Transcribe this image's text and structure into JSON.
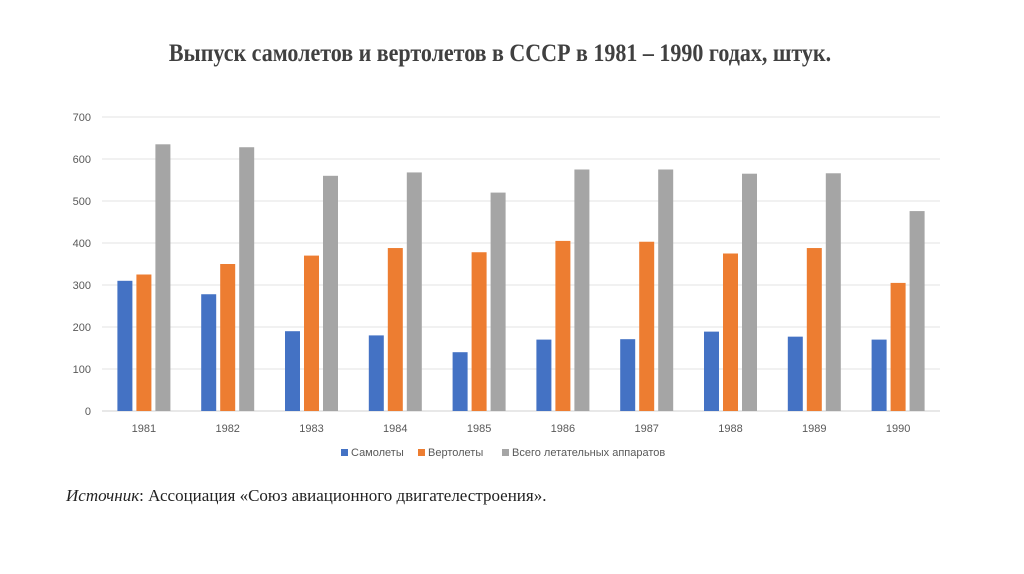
{
  "chart_data": {
    "type": "bar",
    "title": "Выпуск самолетов и вертолетов в СССР в 1981 – 1990 годах, штук.",
    "categories": [
      "1981",
      "1982",
      "1983",
      "1984",
      "1985",
      "1986",
      "1987",
      "1988",
      "1989",
      "1990"
    ],
    "series": [
      {
        "name": "Самолеты",
        "color": "#4472C4",
        "values": [
          310,
          278,
          190,
          180,
          140,
          170,
          171,
          189,
          177,
          170
        ]
      },
      {
        "name": "Вертолеты",
        "color": "#ED7D31",
        "values": [
          325,
          350,
          370,
          388,
          378,
          405,
          403,
          375,
          388,
          305
        ]
      },
      {
        "name": "Всего летательных аппаратов",
        "color": "#A5A5A5",
        "values": [
          635,
          628,
          560,
          568,
          520,
          575,
          575,
          565,
          566,
          476
        ]
      }
    ],
    "yticks": [
      "0",
      "100",
      "200",
      "300",
      "400",
      "500",
      "600",
      "700"
    ],
    "ylim": [
      0,
      700
    ],
    "grid": true,
    "legend": "bottom"
  },
  "source": {
    "label": "Источник",
    "text": ": Ассоциация «Союз авиационного двигателестроения»."
  }
}
